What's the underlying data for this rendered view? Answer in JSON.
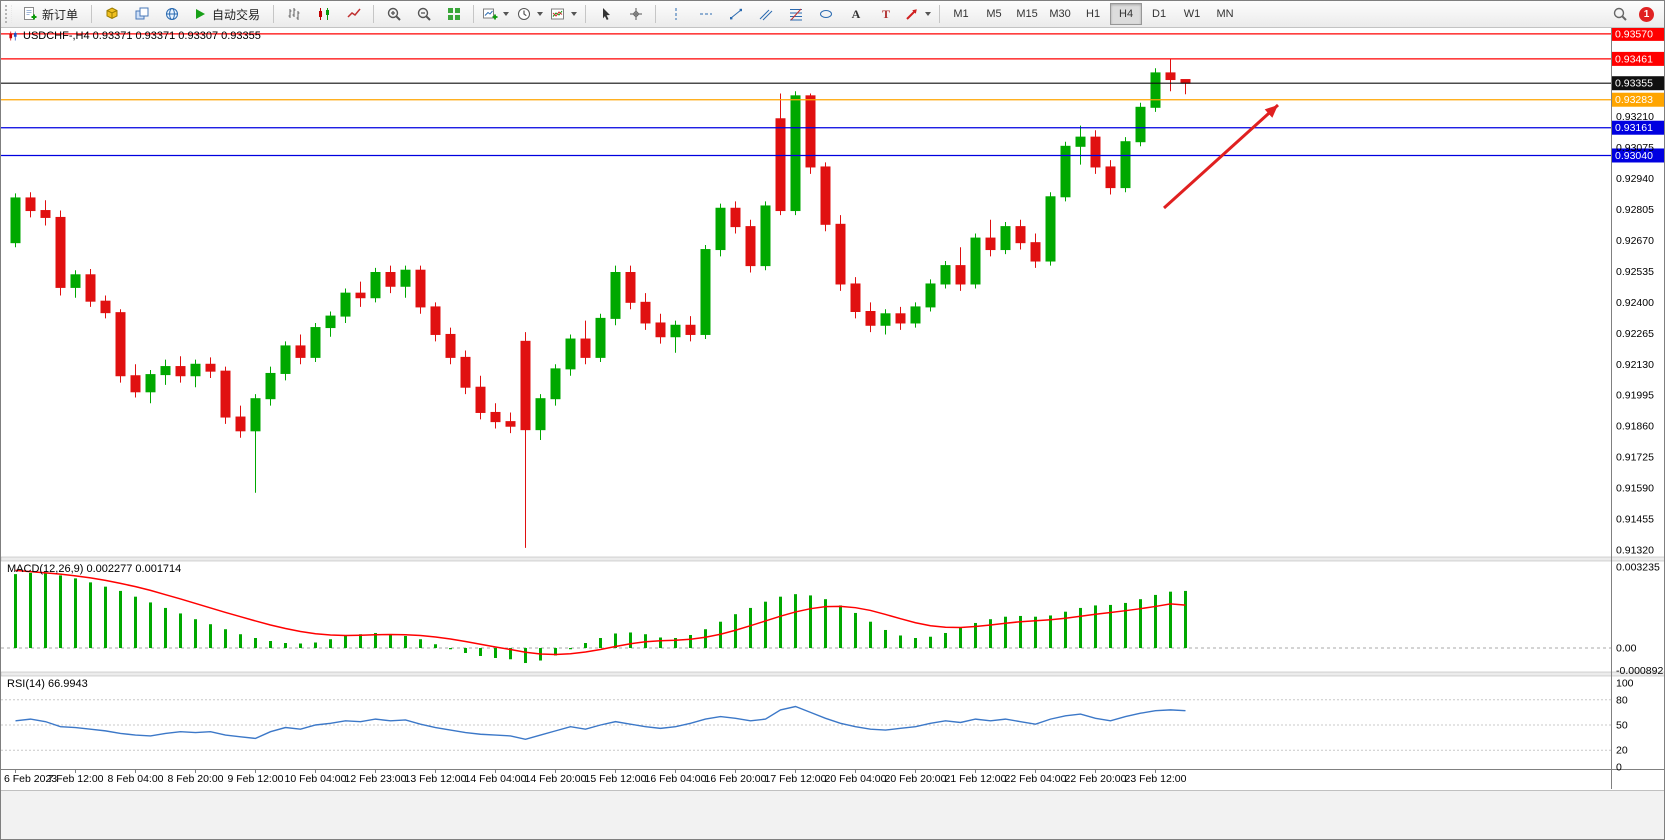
{
  "toolbar": {
    "new_order": "新订单",
    "autotrading": "自动交易",
    "timeframes": [
      "M1",
      "M5",
      "M15",
      "M30",
      "H1",
      "H4",
      "D1",
      "W1",
      "MN"
    ],
    "active_timeframe": "H4",
    "notification_count": "1",
    "icon_names": [
      "new-order-icon",
      "cube-icon",
      "layers-icon",
      "globe-icon",
      "play-icon",
      "bar-chart-icon",
      "candlestick-icon",
      "line-chart-icon",
      "zoom-in-icon",
      "zoom-out-icon",
      "tile-windows-icon",
      "new-chart-icon",
      "periods-clock-icon",
      "indicators-icon",
      "cursor-icon",
      "crosshair-icon",
      "vertical-line-icon",
      "horizontal-line-icon",
      "trendline-icon",
      "channel-icon",
      "fibonacci-icon",
      "ellipse-shape-icon",
      "text-icon",
      "label-icon",
      "arrow-object-icon",
      "search-icon"
    ]
  },
  "chart": {
    "title": "USDCHF-,H4  0.93371 0.93371 0.93307 0.93355",
    "symbol": "USDCHF-",
    "period": "H4",
    "ohlc": {
      "open": "0.93371",
      "high": "0.93371",
      "low": "0.93307",
      "close": "0.93355"
    }
  },
  "chart_data": {
    "type": "candlestick",
    "symbol": "USDCHF",
    "timeframe": "H4",
    "price_range": [
      0.9129,
      0.936
    ],
    "up_color": "#00A800",
    "down_color": "#E01010",
    "candles": [
      [
        0.9266,
        0.92875,
        0.9264,
        0.92855
      ],
      [
        0.92855,
        0.9288,
        0.9277,
        0.928
      ],
      [
        0.928,
        0.92845,
        0.92735,
        0.9277
      ],
      [
        0.9277,
        0.928,
        0.9243,
        0.92465
      ],
      [
        0.92465,
        0.9254,
        0.9242,
        0.9252
      ],
      [
        0.9252,
        0.92545,
        0.9238,
        0.92405
      ],
      [
        0.92405,
        0.9243,
        0.9233,
        0.92355
      ],
      [
        0.92355,
        0.9237,
        0.9205,
        0.9208
      ],
      [
        0.9208,
        0.9213,
        0.91985,
        0.9201
      ],
      [
        0.9201,
        0.92105,
        0.9196,
        0.92085
      ],
      [
        0.92085,
        0.9215,
        0.9204,
        0.9212
      ],
      [
        0.9212,
        0.92165,
        0.9205,
        0.9208
      ],
      [
        0.9208,
        0.9215,
        0.9203,
        0.9213
      ],
      [
        0.9213,
        0.9216,
        0.9207,
        0.921
      ],
      [
        0.921,
        0.9212,
        0.9187,
        0.919
      ],
      [
        0.919,
        0.9195,
        0.9181,
        0.9184
      ],
      [
        0.9184,
        0.92,
        0.9157,
        0.9198
      ],
      [
        0.9198,
        0.9212,
        0.9195,
        0.9209
      ],
      [
        0.9209,
        0.9223,
        0.9206,
        0.9221
      ],
      [
        0.9221,
        0.9226,
        0.9213,
        0.9216
      ],
      [
        0.9216,
        0.9231,
        0.9214,
        0.9229
      ],
      [
        0.9229,
        0.9236,
        0.9225,
        0.9234
      ],
      [
        0.9234,
        0.9246,
        0.9231,
        0.9244
      ],
      [
        0.9244,
        0.9249,
        0.9238,
        0.9242
      ],
      [
        0.9242,
        0.9255,
        0.924,
        0.9253
      ],
      [
        0.9253,
        0.9256,
        0.9244,
        0.9247
      ],
      [
        0.9247,
        0.9256,
        0.9242,
        0.9254
      ],
      [
        0.9254,
        0.9256,
        0.9235,
        0.9238
      ],
      [
        0.9238,
        0.924,
        0.9223,
        0.9226
      ],
      [
        0.9226,
        0.9229,
        0.9213,
        0.9216
      ],
      [
        0.9216,
        0.9219,
        0.92,
        0.9203
      ],
      [
        0.9203,
        0.9208,
        0.9189,
        0.9192
      ],
      [
        0.9192,
        0.9196,
        0.9185,
        0.9188
      ],
      [
        0.9188,
        0.9192,
        0.9183,
        0.9186
      ],
      [
        0.9223,
        0.9227,
        0.9133,
        0.91845
      ],
      [
        0.91845,
        0.92,
        0.918,
        0.9198
      ],
      [
        0.9198,
        0.9213,
        0.9195,
        0.9211
      ],
      [
        0.9211,
        0.9226,
        0.9208,
        0.9224
      ],
      [
        0.9224,
        0.9232,
        0.9213,
        0.9216
      ],
      [
        0.9216,
        0.9235,
        0.9214,
        0.9233
      ],
      [
        0.9233,
        0.9256,
        0.923,
        0.9253
      ],
      [
        0.9253,
        0.9256,
        0.9237,
        0.924
      ],
      [
        0.924,
        0.9244,
        0.9228,
        0.9231
      ],
      [
        0.9231,
        0.9235,
        0.9222,
        0.9225
      ],
      [
        0.9225,
        0.9232,
        0.9218,
        0.923
      ],
      [
        0.923,
        0.9234,
        0.9223,
        0.9226
      ],
      [
        0.9226,
        0.9265,
        0.9224,
        0.9263
      ],
      [
        0.9263,
        0.9283,
        0.926,
        0.9281
      ],
      [
        0.9281,
        0.9284,
        0.927,
        0.9273
      ],
      [
        0.9273,
        0.9276,
        0.9253,
        0.9256
      ],
      [
        0.9256,
        0.9284,
        0.9254,
        0.9282
      ],
      [
        0.932,
        0.9331,
        0.9278,
        0.928
      ],
      [
        0.928,
        0.9332,
        0.9278,
        0.933
      ],
      [
        0.933,
        0.9331,
        0.9296,
        0.9299
      ],
      [
        0.9299,
        0.9301,
        0.9271,
        0.9274
      ],
      [
        0.9274,
        0.9278,
        0.9245,
        0.9248
      ],
      [
        0.9248,
        0.9251,
        0.9233,
        0.9236
      ],
      [
        0.9236,
        0.924,
        0.9227,
        0.923
      ],
      [
        0.923,
        0.9237,
        0.9226,
        0.9235
      ],
      [
        0.9235,
        0.9238,
        0.9228,
        0.9231
      ],
      [
        0.9231,
        0.924,
        0.9229,
        0.9238
      ],
      [
        0.9238,
        0.925,
        0.9236,
        0.9248
      ],
      [
        0.9248,
        0.9258,
        0.9246,
        0.9256
      ],
      [
        0.9256,
        0.9264,
        0.9245,
        0.9248
      ],
      [
        0.9248,
        0.927,
        0.9246,
        0.9268
      ],
      [
        0.9268,
        0.9276,
        0.926,
        0.9263
      ],
      [
        0.9263,
        0.9275,
        0.9261,
        0.9273
      ],
      [
        0.9273,
        0.9276,
        0.9263,
        0.9266
      ],
      [
        0.9266,
        0.927,
        0.9255,
        0.9258
      ],
      [
        0.9258,
        0.9288,
        0.9256,
        0.9286
      ],
      [
        0.9286,
        0.931,
        0.9284,
        0.9308
      ],
      [
        0.9308,
        0.9317,
        0.93,
        0.9312
      ],
      [
        0.9312,
        0.9315,
        0.9296,
        0.9299
      ],
      [
        0.9299,
        0.9302,
        0.9287,
        0.929
      ],
      [
        0.929,
        0.9312,
        0.9288,
        0.931
      ],
      [
        0.931,
        0.9327,
        0.9308,
        0.9325
      ],
      [
        0.9325,
        0.9342,
        0.9323,
        0.934
      ],
      [
        0.934,
        0.93461,
        0.9332,
        0.93371
      ],
      [
        0.93371,
        0.93371,
        0.93307,
        0.93355
      ]
    ],
    "time_labels": [
      {
        "i": 0,
        "t": "6 Feb 2023"
      },
      {
        "i": 4,
        "t": "7 Feb 12:00"
      },
      {
        "i": 8,
        "t": "8 Feb 04:00"
      },
      {
        "i": 12,
        "t": "8 Feb 20:00"
      },
      {
        "i": 16,
        "t": "9 Feb 12:00"
      },
      {
        "i": 20,
        "t": "10 Feb 04:00"
      },
      {
        "i": 24,
        "t": "12 Feb 23:00"
      },
      {
        "i": 28,
        "t": "13 Feb 12:00"
      },
      {
        "i": 32,
        "t": "14 Feb 04:00"
      },
      {
        "i": 36,
        "t": "14 Feb 20:00"
      },
      {
        "i": 40,
        "t": "15 Feb 12:00"
      },
      {
        "i": 44,
        "t": "16 Feb 04:00"
      },
      {
        "i": 48,
        "t": "16 Feb 20:00"
      },
      {
        "i": 52,
        "t": "17 Feb 12:00"
      },
      {
        "i": 56,
        "t": "20 Feb 04:00"
      },
      {
        "i": 60,
        "t": "20 Feb 20:00"
      },
      {
        "i": 64,
        "t": "21 Feb 12:00"
      },
      {
        "i": 68,
        "t": "22 Feb 04:00"
      },
      {
        "i": 72,
        "t": "22 Feb 20:00"
      },
      {
        "i": 76,
        "t": "23 Feb 12:00"
      }
    ],
    "price_axis_labels": [
      "0.93210",
      "0.93075",
      "0.92940",
      "0.92805",
      "0.92670",
      "0.92535",
      "0.92400",
      "0.92265",
      "0.92130",
      "0.91995",
      "0.91860",
      "0.91725",
      "0.91590",
      "0.91455",
      "0.91320"
    ],
    "horizontal_lines": [
      {
        "price": 0.9357,
        "label": "0.93570",
        "color": "#FF0000"
      },
      {
        "price": 0.93461,
        "label": "0.93461",
        "color": "#FF0000"
      },
      {
        "price": 0.93355,
        "label": "0.93355",
        "color": "#101010"
      },
      {
        "price": 0.93283,
        "label": "0.93283",
        "color": "#FFA500"
      },
      {
        "price": 0.93161,
        "label": "0.93161",
        "color": "#0000E0"
      },
      {
        "price": 0.9304,
        "label": "0.93040",
        "color": "#0000E0"
      }
    ],
    "trend_arrow": {
      "from": [
        1163,
        207
      ],
      "to": [
        1277,
        104
      ],
      "color": "#E02020"
    },
    "macd": {
      "label": "MACD(12,26,9) 0.002277 0.001714",
      "params": "12,26,9",
      "value": "0.002277",
      "signal_value": "0.001714",
      "axis_labels": [
        "0.003235",
        "0.00",
        "-0.000892"
      ],
      "histogram_color": "#00A800",
      "signal_color": "#FF0000",
      "histogram": [
        0.00295,
        0.003,
        0.00298,
        0.0029,
        0.00278,
        0.00262,
        0.00245,
        0.00228,
        0.00205,
        0.00182,
        0.0016,
        0.00138,
        0.00115,
        0.00095,
        0.00075,
        0.00055,
        0.0004,
        0.00028,
        0.0002,
        0.00018,
        0.00022,
        0.00035,
        0.00048,
        0.00055,
        0.0006,
        0.00055,
        0.00048,
        0.00035,
        0.00015,
        -5e-05,
        -0.0002,
        -0.00032,
        -0.0004,
        -0.00045,
        -0.0006,
        -0.0005,
        -0.0003,
        -5e-05,
        0.0002,
        0.0004,
        0.00058,
        0.00062,
        0.00055,
        0.00042,
        0.0004,
        0.00052,
        0.00075,
        0.00105,
        0.00135,
        0.0016,
        0.00185,
        0.00205,
        0.00215,
        0.0021,
        0.00195,
        0.0017,
        0.0014,
        0.00105,
        0.00072,
        0.0005,
        0.0004,
        0.00045,
        0.0006,
        0.0008,
        0.001,
        0.00115,
        0.00125,
        0.00128,
        0.00125,
        0.0013,
        0.00145,
        0.0016,
        0.0017,
        0.00172,
        0.0018,
        0.00195,
        0.00212,
        0.00225,
        0.00228
      ],
      "signal": [
        0.0031,
        0.00305,
        0.003,
        0.00295,
        0.00288,
        0.0028,
        0.0027,
        0.00258,
        0.00245,
        0.0023,
        0.00213,
        0.00196,
        0.00178,
        0.0016,
        0.00142,
        0.00125,
        0.00108,
        0.00092,
        0.00078,
        0.00066,
        0.00057,
        0.00052,
        0.0005,
        0.00051,
        0.00053,
        0.00054,
        0.00053,
        0.0005,
        0.00044,
        0.00036,
        0.00026,
        0.00015,
        4e-05,
        -6e-05,
        -0.00017,
        -0.00024,
        -0.00026,
        -0.00023,
        -0.00016,
        -6e-05,
        6e-05,
        0.00017,
        0.00025,
        0.00029,
        0.00031,
        0.00035,
        0.00043,
        0.00055,
        0.00071,
        0.00089,
        0.00108,
        0.00127,
        0.00144,
        0.00157,
        0.00165,
        0.00166,
        0.00161,
        0.0015,
        0.00134,
        0.00117,
        0.00101,
        0.00089,
        0.00083,
        0.00082,
        0.00086,
        0.00092,
        0.00099,
        0.00105,
        0.00109,
        0.00113,
        0.00119,
        0.00127,
        0.00135,
        0.00142,
        0.00149,
        0.00157,
        0.00166,
        0.00176,
        0.00171
      ]
    },
    "rsi": {
      "label": "RSI(14) 66.9943",
      "period": "14",
      "value": "66.9943",
      "line_color": "#3C78C8",
      "axis_labels": [
        "100",
        "80",
        "50",
        "20",
        "0"
      ],
      "levels": [
        80,
        50,
        20
      ],
      "values": [
        55,
        57,
        54,
        48,
        47,
        45,
        43,
        40,
        38,
        37,
        40,
        42,
        41,
        42,
        38,
        36,
        34,
        42,
        47,
        45,
        50,
        52,
        55,
        54,
        57,
        55,
        56,
        51,
        47,
        44,
        41,
        39,
        38,
        37,
        33,
        38,
        43,
        48,
        45,
        50,
        54,
        51,
        48,
        46,
        48,
        52,
        57,
        60,
        58,
        55,
        57,
        68,
        72,
        65,
        58,
        52,
        48,
        45,
        44,
        46,
        48,
        52,
        55,
        53,
        57,
        55,
        57,
        54,
        51,
        57,
        61,
        63,
        58,
        55,
        60,
        64,
        67,
        68,
        67
      ]
    }
  }
}
